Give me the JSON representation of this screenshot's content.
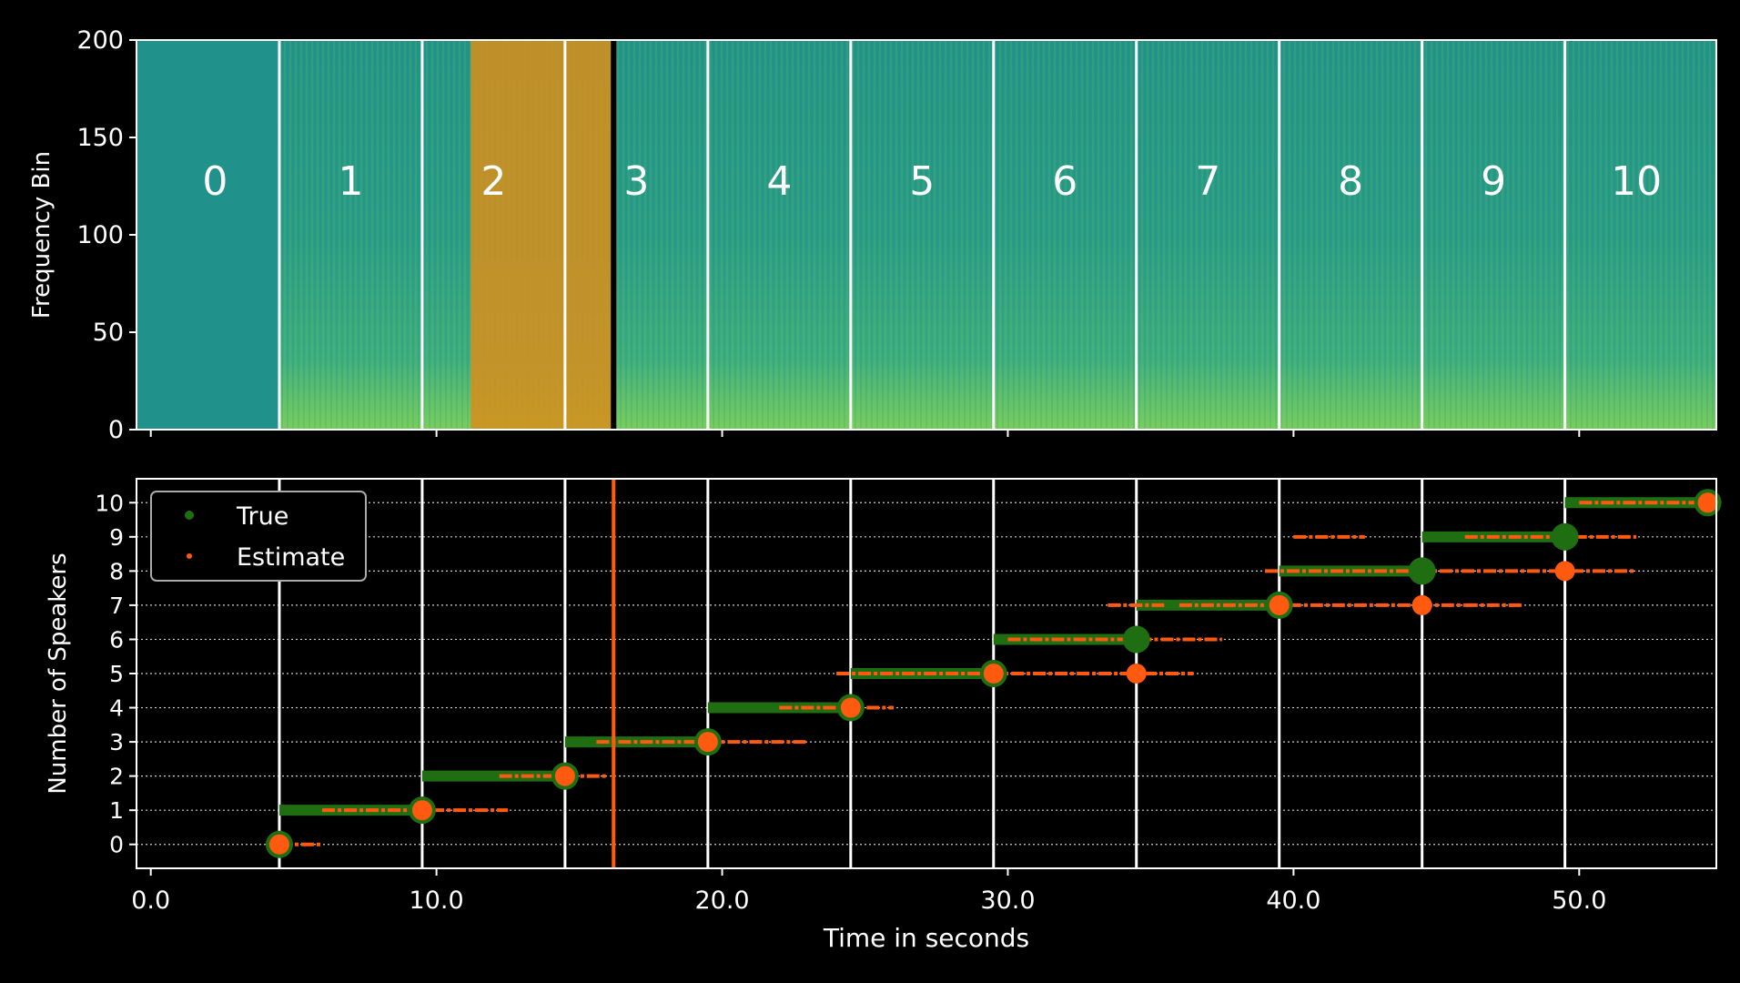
{
  "chart_data": [
    {
      "type": "heatmap",
      "ylabel": "Frequency Bin",
      "xlabel": "",
      "ylim": [
        0,
        200
      ],
      "yticks": [
        0,
        50,
        100,
        150,
        200
      ],
      "xlim": [
        -0.5,
        54.8
      ],
      "segment_boundaries": [
        4.5,
        9.5,
        14.5,
        19.5,
        24.5,
        29.5,
        34.5,
        39.5,
        44.5,
        49.5
      ],
      "segment_labels": [
        "0",
        "1",
        "2",
        "3",
        "4",
        "5",
        "6",
        "7",
        "8",
        "9",
        "10"
      ],
      "highlight": {
        "start": 11.2,
        "end": 16.2,
        "color": "#d4901e"
      },
      "colors": {
        "low": "#21918c",
        "mid": "#35b779",
        "high": "#fde725"
      }
    },
    {
      "type": "scatter",
      "xlabel": "Time in seconds",
      "ylabel": "Number of Speakers",
      "xlim": [
        -0.5,
        54.8
      ],
      "ylim": [
        -0.7,
        10.7
      ],
      "xticks": [
        0,
        10,
        20,
        30,
        40,
        50
      ],
      "xtick_labels": [
        "0.0",
        "10.0",
        "20.0",
        "30.0",
        "40.0",
        "50.0"
      ],
      "yticks": [
        0,
        1,
        2,
        3,
        4,
        5,
        6,
        7,
        8,
        9,
        10
      ],
      "grid": "horizontal dotted",
      "vertical_marker": 16.2,
      "segment_boundaries": [
        4.5,
        9.5,
        14.5,
        19.5,
        24.5,
        29.5,
        34.5,
        39.5,
        44.5,
        49.5
      ],
      "legend": {
        "placement": "top-left",
        "entries": [
          "True",
          "Estimate"
        ]
      },
      "series": [
        {
          "name": "True",
          "color": "#1f6e12",
          "points": [
            [
              4.5,
              0
            ],
            [
              9.5,
              1
            ],
            [
              14.5,
              2
            ],
            [
              19.5,
              3
            ],
            [
              24.5,
              4
            ],
            [
              29.5,
              5
            ],
            [
              34.5,
              6
            ],
            [
              39.5,
              7
            ],
            [
              44.5,
              8
            ],
            [
              49.5,
              9
            ],
            [
              54.5,
              10
            ]
          ],
          "bands": [
            {
              "y": 1,
              "x0": 4.5,
              "x1": 9.5
            },
            {
              "y": 2,
              "x0": 9.5,
              "x1": 14.5
            },
            {
              "y": 3,
              "x0": 14.5,
              "x1": 19.5
            },
            {
              "y": 4,
              "x0": 19.5,
              "x1": 24.5
            },
            {
              "y": 5,
              "x0": 24.5,
              "x1": 29.5
            },
            {
              "y": 6,
              "x0": 29.5,
              "x1": 34.5
            },
            {
              "y": 7,
              "x0": 34.5,
              "x1": 39.5
            },
            {
              "y": 8,
              "x0": 39.5,
              "x1": 44.5
            },
            {
              "y": 9,
              "x0": 44.5,
              "x1": 49.5
            },
            {
              "y": 10,
              "x0": 49.5,
              "x1": 54.5
            }
          ]
        },
        {
          "name": "Estimate",
          "color": "#ff5a10",
          "points": [
            [
              4.5,
              0
            ],
            [
              9.5,
              1
            ],
            [
              14.5,
              2
            ],
            [
              19.5,
              3
            ],
            [
              24.5,
              4
            ],
            [
              29.5,
              5
            ],
            [
              34.5,
              5
            ],
            [
              39.5,
              7
            ],
            [
              44.5,
              7
            ],
            [
              49.5,
              8
            ],
            [
              54.5,
              10
            ]
          ],
          "bands": [
            {
              "y": 0,
              "x0": 4.5,
              "x1": 6.0
            },
            {
              "y": 1,
              "x0": 6.0,
              "x1": 12.5
            },
            {
              "y": 2,
              "x0": 12.2,
              "x1": 16.0
            },
            {
              "y": 3,
              "x0": 15.6,
              "x1": 23.0
            },
            {
              "y": 4,
              "x0": 22.0,
              "x1": 26.0
            },
            {
              "y": 5,
              "x0": 24.0,
              "x1": 34.0
            },
            {
              "y": 5,
              "x0": 34.0,
              "x1": 36.5
            },
            {
              "y": 6,
              "x0": 30.0,
              "x1": 37.5
            },
            {
              "y": 7,
              "x0": 33.5,
              "x1": 35.5
            },
            {
              "y": 7,
              "x0": 36.0,
              "x1": 46.0
            },
            {
              "y": 7,
              "x0": 46.0,
              "x1": 48.0
            },
            {
              "y": 8,
              "x0": 39.0,
              "x1": 52.0
            },
            {
              "y": 9,
              "x0": 40.0,
              "x1": 42.5
            },
            {
              "y": 9,
              "x0": 46.0,
              "x1": 52.0
            },
            {
              "y": 10,
              "x0": 50.0,
              "x1": 54.5
            }
          ]
        }
      ]
    }
  ]
}
